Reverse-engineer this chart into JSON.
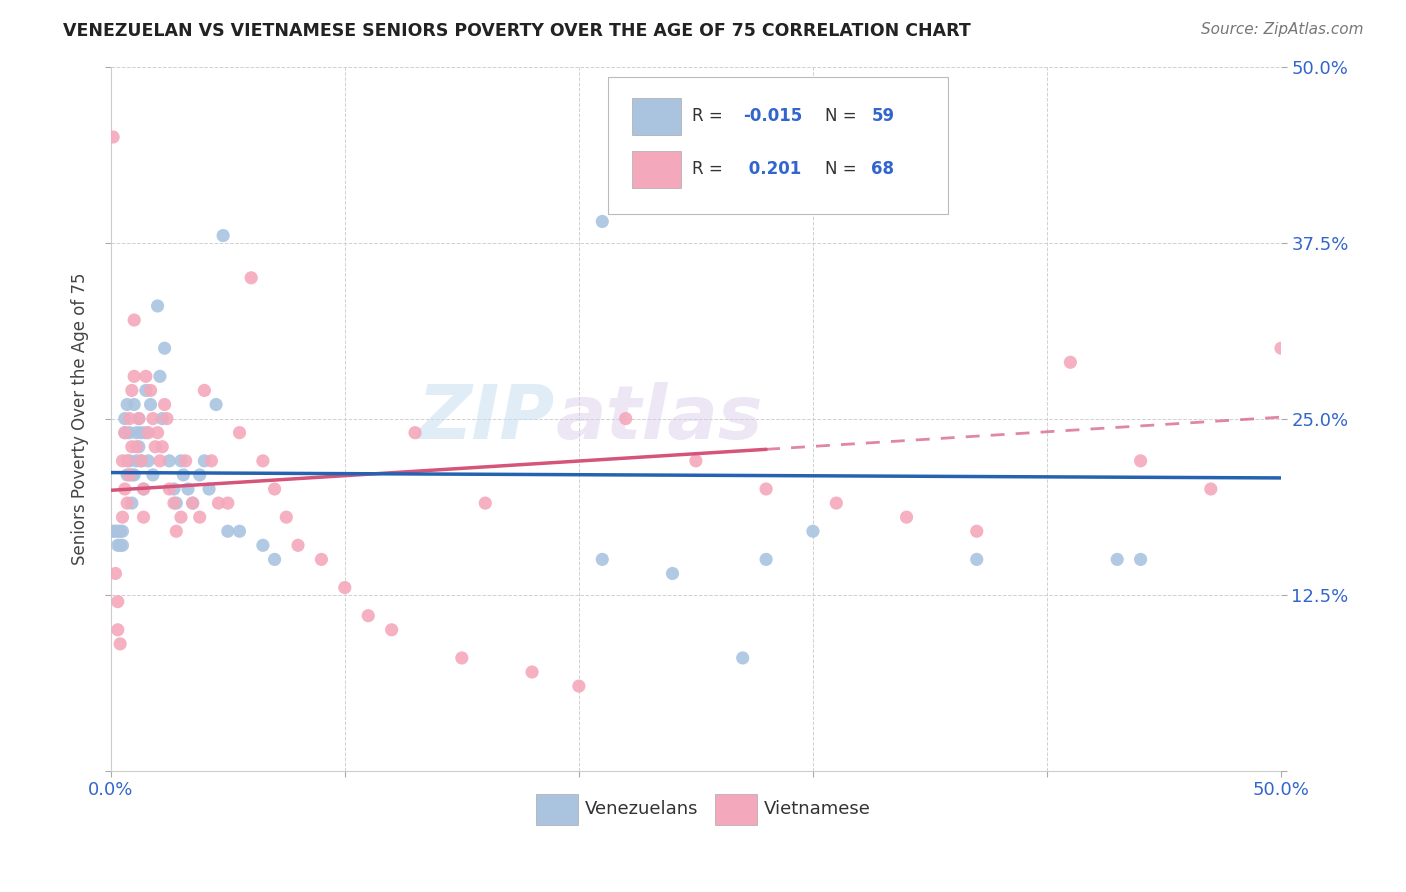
{
  "title": "VENEZUELAN VS VIETNAMESE SENIORS POVERTY OVER THE AGE OF 75 CORRELATION CHART",
  "source": "Source: ZipAtlas.com",
  "ylabel": "Seniors Poverty Over the Age of 75",
  "watermark_zip": "ZIP",
  "watermark_atlas": "atlas",
  "xlim": [
    0.0,
    0.5
  ],
  "ylim": [
    0.0,
    0.5
  ],
  "xticks": [
    0.0,
    0.1,
    0.2,
    0.3,
    0.4,
    0.5
  ],
  "yticks": [
    0.0,
    0.125,
    0.25,
    0.375,
    0.5
  ],
  "venezuelan_color": "#aac4e0",
  "vietnamese_color": "#f4a8bc",
  "venezuelan_line_color": "#2563b0",
  "vietnamese_line_color": "#d4547a",
  "venezuelan_R": -0.015,
  "venezuelan_N": 59,
  "vietnamese_R": 0.201,
  "vietnamese_N": 68,
  "background_color": "#ffffff",
  "grid_color": "#cccccc",
  "venezuelan_x": [
    0.001,
    0.002,
    0.003,
    0.003,
    0.004,
    0.004,
    0.005,
    0.005,
    0.006,
    0.006,
    0.007,
    0.007,
    0.008,
    0.008,
    0.009,
    0.009,
    0.01,
    0.01,
    0.011,
    0.011,
    0.012,
    0.012,
    0.013,
    0.013,
    0.014,
    0.015,
    0.015,
    0.016,
    0.017,
    0.018,
    0.02,
    0.021,
    0.022,
    0.023,
    0.025,
    0.027,
    0.028,
    0.03,
    0.031,
    0.033,
    0.035,
    0.038,
    0.04,
    0.042,
    0.045,
    0.048,
    0.05,
    0.055,
    0.065,
    0.07,
    0.21,
    0.21,
    0.24,
    0.27,
    0.28,
    0.3,
    0.37,
    0.43,
    0.44
  ],
  "venezuelan_y": [
    0.17,
    0.17,
    0.17,
    0.16,
    0.17,
    0.16,
    0.17,
    0.16,
    0.25,
    0.24,
    0.26,
    0.21,
    0.24,
    0.22,
    0.21,
    0.19,
    0.26,
    0.21,
    0.24,
    0.22,
    0.25,
    0.23,
    0.24,
    0.22,
    0.2,
    0.27,
    0.24,
    0.22,
    0.26,
    0.21,
    0.33,
    0.28,
    0.25,
    0.3,
    0.22,
    0.2,
    0.19,
    0.22,
    0.21,
    0.2,
    0.19,
    0.21,
    0.22,
    0.2,
    0.26,
    0.38,
    0.17,
    0.17,
    0.16,
    0.15,
    0.39,
    0.15,
    0.14,
    0.08,
    0.15,
    0.17,
    0.15,
    0.15,
    0.15
  ],
  "vietnamese_x": [
    0.001,
    0.002,
    0.003,
    0.003,
    0.004,
    0.005,
    0.005,
    0.006,
    0.006,
    0.007,
    0.007,
    0.008,
    0.008,
    0.009,
    0.009,
    0.01,
    0.01,
    0.011,
    0.012,
    0.013,
    0.014,
    0.014,
    0.015,
    0.016,
    0.017,
    0.018,
    0.019,
    0.02,
    0.021,
    0.022,
    0.023,
    0.024,
    0.025,
    0.027,
    0.028,
    0.03,
    0.032,
    0.035,
    0.038,
    0.04,
    0.043,
    0.046,
    0.05,
    0.055,
    0.06,
    0.065,
    0.07,
    0.075,
    0.08,
    0.09,
    0.1,
    0.11,
    0.12,
    0.13,
    0.15,
    0.16,
    0.18,
    0.2,
    0.22,
    0.25,
    0.28,
    0.31,
    0.34,
    0.37,
    0.41,
    0.44,
    0.47,
    0.5
  ],
  "vietnamese_y": [
    0.45,
    0.14,
    0.12,
    0.1,
    0.09,
    0.22,
    0.18,
    0.24,
    0.2,
    0.22,
    0.19,
    0.25,
    0.21,
    0.27,
    0.23,
    0.32,
    0.28,
    0.23,
    0.25,
    0.22,
    0.2,
    0.18,
    0.28,
    0.24,
    0.27,
    0.25,
    0.23,
    0.24,
    0.22,
    0.23,
    0.26,
    0.25,
    0.2,
    0.19,
    0.17,
    0.18,
    0.22,
    0.19,
    0.18,
    0.27,
    0.22,
    0.19,
    0.19,
    0.24,
    0.35,
    0.22,
    0.2,
    0.18,
    0.16,
    0.15,
    0.13,
    0.11,
    0.1,
    0.24,
    0.08,
    0.19,
    0.07,
    0.06,
    0.25,
    0.22,
    0.2,
    0.19,
    0.18,
    0.17,
    0.29,
    0.22,
    0.2,
    0.3
  ]
}
